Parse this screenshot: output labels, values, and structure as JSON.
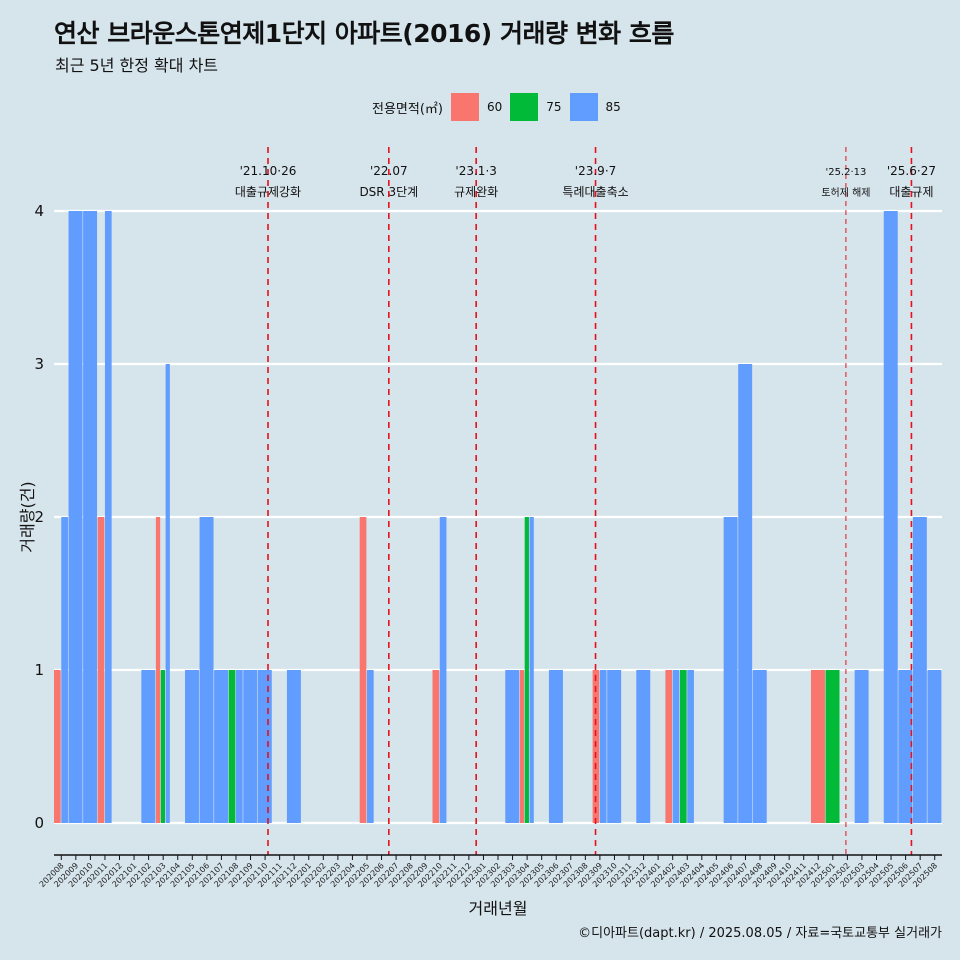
{
  "title": "연산 브라운스톤연제1단지 아파트(2016) 거래량 변화 흐름",
  "subtitle": "최근 5년 한정 확대 차트",
  "caption": "©디아파트(dapt.kr) / 2025.08.05 / 자료=국토교통부 실거래가",
  "chart_data": {
    "type": "bar",
    "stacked": false,
    "grid": true,
    "legend_position": "top",
    "xlabel": "거래년월",
    "ylabel": "거래량(건)",
    "ylim": [
      0,
      4
    ],
    "yticks": [
      0,
      1,
      2,
      3,
      4
    ],
    "legend_title": "전용면적(㎡)",
    "categories": [
      "202008",
      "202009",
      "202010",
      "202011",
      "202012",
      "202101",
      "202102",
      "202103",
      "202104",
      "202105",
      "202106",
      "202107",
      "202108",
      "202109",
      "202110",
      "202111",
      "202112",
      "202201",
      "202202",
      "202203",
      "202204",
      "202205",
      "202206",
      "202207",
      "202208",
      "202209",
      "202210",
      "202211",
      "202212",
      "202301",
      "202302",
      "202303",
      "202304",
      "202305",
      "202306",
      "202307",
      "202308",
      "202309",
      "202310",
      "202311",
      "202312",
      "202401",
      "202402",
      "202403",
      "202404",
      "202405",
      "202406",
      "202407",
      "202408",
      "202409",
      "202410",
      "202411",
      "202412",
      "202501",
      "202502",
      "202503",
      "202504",
      "202505",
      "202506",
      "202507",
      "202508"
    ],
    "series": [
      {
        "name": "60",
        "color": "#f8766d",
        "values": [
          1,
          0,
          0,
          2,
          0,
          0,
          0,
          2,
          0,
          0,
          0,
          0,
          0,
          0,
          0,
          0,
          0,
          0,
          0,
          0,
          0,
          2,
          0,
          0,
          0,
          0,
          1,
          0,
          0,
          0,
          0,
          0,
          1,
          0,
          0,
          0,
          0,
          1,
          0,
          0,
          0,
          0,
          1,
          0,
          0,
          0,
          0,
          0,
          0,
          0,
          0,
          0,
          1,
          0,
          0,
          0,
          0,
          0,
          0,
          0,
          0
        ]
      },
      {
        "name": "75",
        "color": "#00ba38",
        "values": [
          0,
          0,
          0,
          0,
          0,
          0,
          0,
          1,
          0,
          0,
          0,
          0,
          1,
          0,
          0,
          0,
          0,
          0,
          0,
          0,
          0,
          0,
          0,
          0,
          0,
          0,
          0,
          0,
          0,
          0,
          0,
          0,
          2,
          0,
          0,
          0,
          0,
          0,
          0,
          0,
          0,
          0,
          0,
          1,
          0,
          0,
          0,
          0,
          0,
          0,
          0,
          0,
          0,
          1,
          0,
          0,
          0,
          0,
          0,
          0,
          0
        ]
      },
      {
        "name": "85",
        "color": "#619cff",
        "values": [
          2,
          4,
          4,
          4,
          0,
          0,
          1,
          3,
          0,
          1,
          2,
          1,
          1,
          1,
          1,
          0,
          1,
          0,
          0,
          0,
          0,
          1,
          0,
          0,
          0,
          0,
          2,
          0,
          0,
          0,
          0,
          1,
          2,
          0,
          1,
          0,
          0,
          1,
          1,
          0,
          1,
          0,
          1,
          1,
          0,
          0,
          2,
          3,
          1,
          0,
          0,
          0,
          0,
          0,
          0,
          1,
          0,
          4,
          1,
          2,
          1
        ]
      }
    ],
    "annotations": [
      {
        "label_top": "'21.10·26",
        "label_bottom": "대출규제강화",
        "x": "202110",
        "x_offset": 0.7,
        "style": "major"
      },
      {
        "label_top": "'22.07",
        "label_bottom": "DSR 3단계",
        "x": "202207",
        "x_offset": 0.0,
        "style": "major"
      },
      {
        "label_top": "'23.1·3",
        "label_bottom": "규제완화",
        "x": "202301",
        "x_offset": 0.0,
        "style": "major"
      },
      {
        "label_top": "'23.9·7",
        "label_bottom": "특례대출축소",
        "x": "202309",
        "x_offset": 0.2,
        "style": "major"
      },
      {
        "label_top": "'25.2·13",
        "label_bottom": "토허제 해제",
        "x": "202502",
        "x_offset": 0.4,
        "style": "minor"
      },
      {
        "label_top": "'25.6·27",
        "label_bottom": "대출규제",
        "x": "202506",
        "x_offset": 0.9,
        "style": "major"
      }
    ]
  }
}
